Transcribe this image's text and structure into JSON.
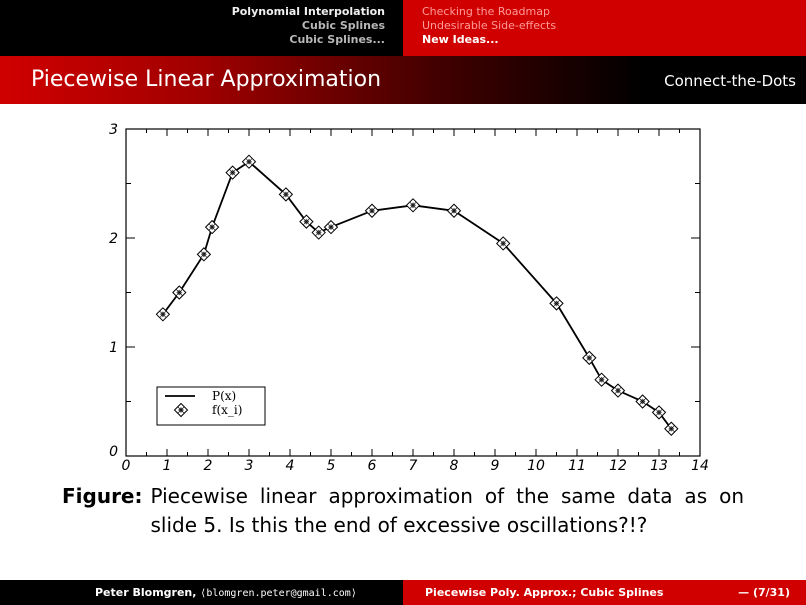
{
  "nav": {
    "left": [
      {
        "label": "Polynomial Interpolation",
        "sub": false
      },
      {
        "label": "Cubic Splines",
        "sub": true
      },
      {
        "label": "Cubic Splines...",
        "sub": true
      }
    ],
    "right": [
      {
        "label": "Checking the Roadmap",
        "current": false
      },
      {
        "label": "Undesirable Side-effects",
        "current": false
      },
      {
        "label": "New Ideas...",
        "current": true
      }
    ]
  },
  "slide": {
    "title": "Piecewise Linear Approximation",
    "subtitle": "Connect-the-Dots"
  },
  "caption": {
    "label": "Figure:",
    "text": "Piecewise linear approximation of the same data as on slide 5. Is this the end of excessive oscillations?!?"
  },
  "footer": {
    "author": "Peter Blomgren,",
    "email": "⟨blomgren.peter@gmail.com⟩",
    "course": "Piecewise Poly. Approx.; Cubic Splines",
    "page": "— (7/31)"
  },
  "chart_data": {
    "type": "line",
    "xlim": [
      0,
      14
    ],
    "ylim": [
      0,
      3
    ],
    "x_ticks": [
      0,
      1,
      2,
      3,
      4,
      5,
      6,
      7,
      8,
      9,
      10,
      11,
      12,
      13,
      14
    ],
    "y_ticks": [
      0,
      1,
      2,
      3
    ],
    "legend": [
      "P(x)",
      "f(x_i)"
    ],
    "legend_position": "bottom-left",
    "series": [
      {
        "name": "P(x)",
        "style": "line",
        "color": "#000000",
        "x": [
          0.9,
          1.3,
          1.9,
          2.1,
          2.6,
          3.0,
          3.9,
          4.4,
          4.7,
          5.0,
          6.0,
          7.0,
          8.0,
          9.2,
          10.5,
          11.3,
          11.6,
          12.0,
          12.6,
          13.0,
          13.3
        ],
        "y": [
          1.3,
          1.5,
          1.85,
          2.1,
          2.6,
          2.7,
          2.4,
          2.15,
          2.05,
          2.1,
          2.25,
          2.3,
          2.25,
          1.95,
          1.4,
          0.9,
          0.7,
          0.6,
          0.5,
          0.4,
          0.25
        ]
      },
      {
        "name": "f(x_i)",
        "style": "markers",
        "marker": "diamond",
        "x": [
          0.9,
          1.3,
          1.9,
          2.1,
          2.6,
          3.0,
          3.9,
          4.4,
          4.7,
          5.0,
          6.0,
          7.0,
          8.0,
          9.2,
          10.5,
          11.3,
          11.6,
          12.0,
          12.6,
          13.0,
          13.3
        ],
        "y": [
          1.3,
          1.5,
          1.85,
          2.1,
          2.6,
          2.7,
          2.4,
          2.15,
          2.05,
          2.1,
          2.25,
          2.3,
          2.25,
          1.95,
          1.4,
          0.9,
          0.7,
          0.6,
          0.5,
          0.4,
          0.25
        ]
      }
    ]
  }
}
